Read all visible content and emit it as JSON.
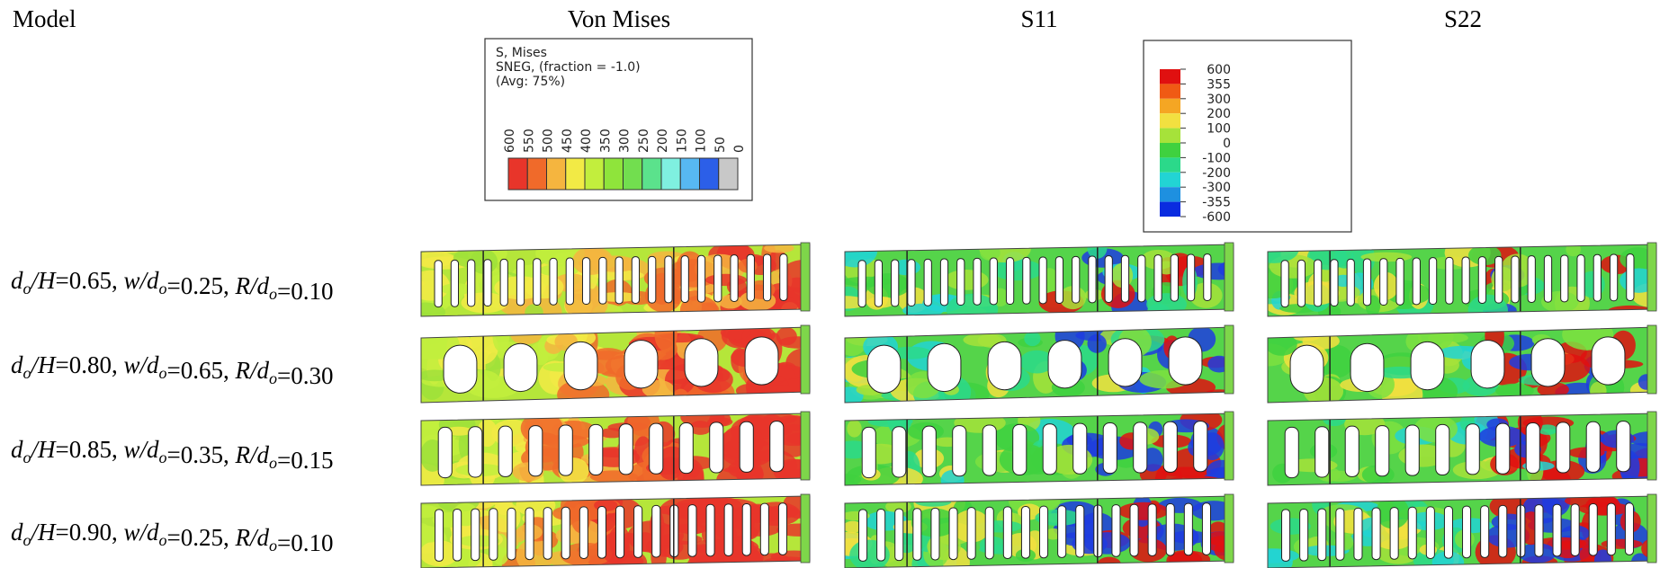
{
  "headers": [
    "Model",
    "Von Mises",
    "S11",
    "S22"
  ],
  "legend_mises": {
    "title_lines": [
      "S, Mises",
      "SNEG, (fraction = -1.0)",
      "(Avg: 75%)"
    ],
    "labels": [
      600,
      550,
      500,
      450,
      400,
      350,
      300,
      250,
      200,
      150,
      100,
      50,
      0
    ]
  },
  "legend_s": {
    "labels": [
      600,
      355,
      300,
      200,
      100,
      0,
      -100,
      -200,
      -300,
      -355,
      -600
    ]
  },
  "row_label_format": {
    "params": [
      {
        "main": "d",
        "sub": "o",
        "rest": "/H"
      },
      {
        "main": "w/d",
        "sub": "o",
        "rest": ""
      },
      {
        "main": "R/d",
        "sub": "o",
        "rest": ""
      }
    ],
    "equals": "=",
    "separator": ", "
  },
  "rows": [
    {
      "values": [
        "0.65",
        "0.25",
        "0.10"
      ]
    },
    {
      "values": [
        "0.80",
        "0.65",
        "0.30"
      ]
    },
    {
      "values": [
        "0.85",
        "0.35",
        "0.15"
      ]
    },
    {
      "values": [
        "0.90",
        "0.25",
        "0.10"
      ]
    }
  ]
}
